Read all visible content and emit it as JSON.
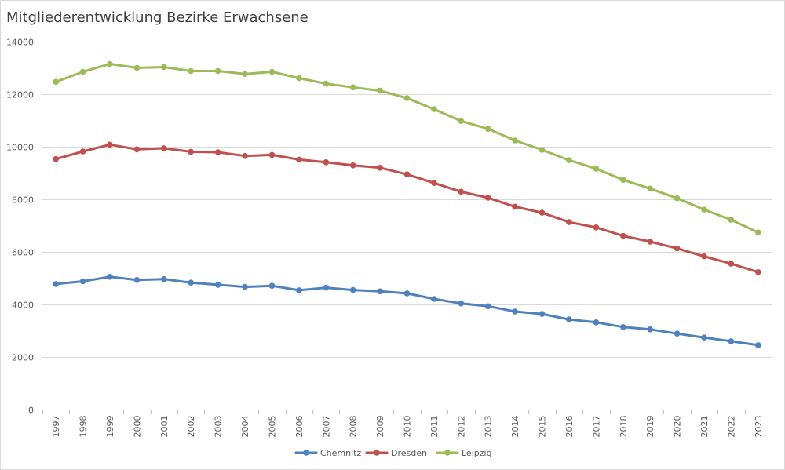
{
  "chart_data": {
    "type": "line",
    "title": "Mitgliederentwicklung Bezirke Erwachsene",
    "xlabel": "",
    "ylabel": "",
    "ylim": [
      0,
      14000
    ],
    "yticks": [
      0,
      2000,
      4000,
      6000,
      8000,
      10000,
      12000,
      14000
    ],
    "grid": true,
    "legend": "bottom",
    "categories": [
      "1997",
      "1998",
      "1999",
      "2000",
      "2001",
      "2002",
      "2003",
      "2004",
      "2005",
      "2006",
      "2007",
      "2008",
      "2009",
      "2010",
      "2011",
      "2012",
      "2013",
      "2014",
      "2015",
      "2016",
      "2017",
      "2018",
      "2019",
      "2020",
      "2021",
      "2022",
      "2023"
    ],
    "series": [
      {
        "name": "Chemnitz",
        "color": "#4f81bd",
        "values": [
          4780,
          4880,
          5050,
          4930,
          4960,
          4830,
          4750,
          4670,
          4710,
          4540,
          4640,
          4550,
          4500,
          4420,
          4210,
          4040,
          3930,
          3730,
          3640,
          3430,
          3320,
          3140,
          3050,
          2890,
          2740,
          2600,
          2450
        ]
      },
      {
        "name": "Dresden",
        "color": "#c0504d",
        "values": [
          9530,
          9820,
          10080,
          9900,
          9940,
          9810,
          9790,
          9650,
          9690,
          9510,
          9410,
          9290,
          9200,
          8950,
          8620,
          8290,
          8060,
          7720,
          7490,
          7130,
          6930,
          6610,
          6390,
          6130,
          5830,
          5550,
          5230
        ]
      },
      {
        "name": "Leipzig",
        "color": "#9bbb59",
        "values": [
          12470,
          12850,
          13150,
          13000,
          13030,
          12880,
          12880,
          12770,
          12850,
          12610,
          12400,
          12260,
          12130,
          11850,
          11430,
          10980,
          10680,
          10240,
          9880,
          9490,
          9160,
          8740,
          8410,
          8040,
          7610,
          7220,
          6740
        ]
      }
    ]
  }
}
